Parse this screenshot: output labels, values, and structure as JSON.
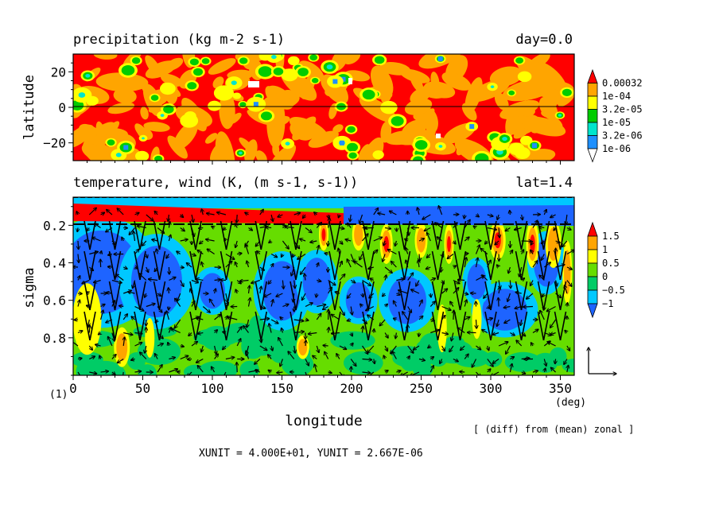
{
  "chart_data": [
    {
      "type": "heatmap",
      "title": "precipitation (kg m-2 s-1)",
      "time_label": "day=0.0",
      "ylabel": "latitude",
      "xlim": [
        0,
        360
      ],
      "ylim": [
        -30,
        30
      ],
      "yticks": [
        20,
        0,
        -20
      ],
      "ytick_labels": [
        "20",
        "0",
        "−20"
      ],
      "reference_line_y": 0,
      "legend": {
        "labels": [
          "0.00032",
          "1e-04",
          "3.2e-05",
          "1e-05",
          "3.2e-06",
          "1e-06"
        ],
        "colors": [
          "#ff0000",
          "#ffa500",
          "#ffff00",
          "#00cc00",
          "#00e5cc",
          "#1e90ff",
          "#ffffff"
        ]
      }
    },
    {
      "type": "heatmap",
      "title": "temperature, wind (K, (m s-1, s-1))",
      "lat_label": "lat=1.4",
      "xlabel": "longitude",
      "ylabel": "sigma",
      "xlim": [
        0,
        360
      ],
      "ylim": [
        1.0,
        0.05
      ],
      "xticks": [
        0,
        50,
        100,
        150,
        200,
        250,
        300,
        350
      ],
      "xtick_labels": [
        "0",
        "50",
        "100",
        "150",
        "200",
        "250",
        "300",
        "350"
      ],
      "yticks": [
        0.2,
        0.4,
        0.6,
        0.8
      ],
      "ytick_labels": [
        "0.2",
        "0.4",
        "0.6",
        "0.8"
      ],
      "x_unit_label": "(deg)",
      "legend": {
        "labels": [
          "1.5",
          "1",
          "0.5",
          "0",
          "−0.5",
          "−1"
        ],
        "colors": [
          "#ff0000",
          "#ffa500",
          "#ffff00",
          "#66dd00",
          "#00cc66",
          "#00c8ff",
          "#1e64ff"
        ]
      },
      "vector_reference": "XUNIT = 4.000E+01, YUNIT = 2.667E-06",
      "note": "[ (diff) from (mean) zonal ]",
      "corner_label": "(1)"
    }
  ]
}
